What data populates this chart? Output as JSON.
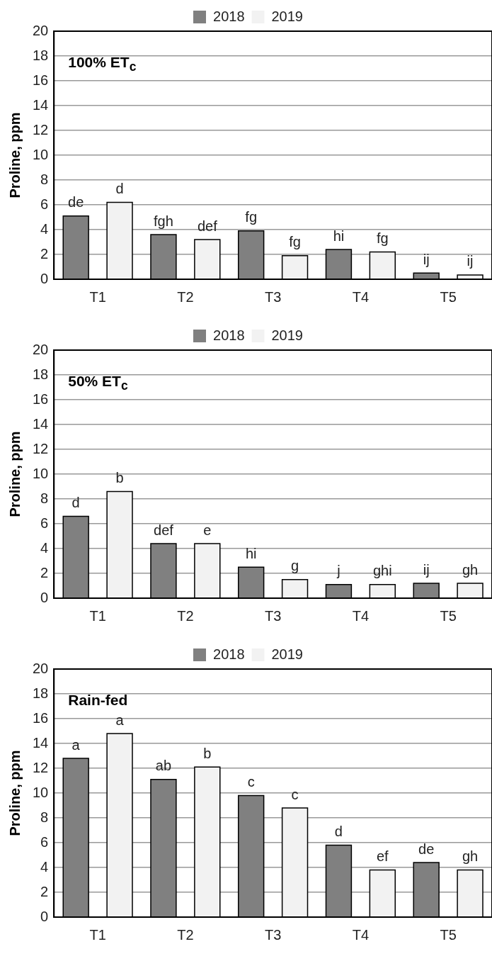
{
  "chart_data": [
    {
      "type": "bar",
      "title": "100% ET$_{c}$",
      "ylabel": "Proline, ppm",
      "categories": [
        "T1",
        "T2",
        "T3",
        "T4",
        "T5"
      ],
      "series": [
        {
          "name": "2018",
          "color": "#808080",
          "values": [
            5.1,
            3.6,
            3.9,
            2.4,
            0.5
          ],
          "value_labels": [
            "de",
            "fgh",
            "fg",
            "hi",
            "ij"
          ]
        },
        {
          "name": "2019",
          "color": "#f2f2f2",
          "values": [
            6.2,
            3.2,
            1.9,
            2.2,
            0.35
          ],
          "value_labels": [
            "d",
            "def",
            "fg",
            "fg",
            "ij"
          ]
        }
      ],
      "ylim": [
        0,
        20
      ],
      "yticks": [
        0,
        2,
        4,
        6,
        8,
        10,
        12,
        14,
        16,
        18,
        20
      ],
      "grid": "y",
      "legend": "top"
    },
    {
      "type": "bar",
      "title": "50% ET$_{c}$",
      "ylabel": "Proline, ppm",
      "categories": [
        "T1",
        "T2",
        "T3",
        "T4",
        "T5"
      ],
      "series": [
        {
          "name": "2018",
          "color": "#808080",
          "values": [
            6.6,
            4.4,
            2.5,
            1.1,
            1.2
          ],
          "value_labels": [
            "d",
            "def",
            "hi",
            "j",
            "ij"
          ]
        },
        {
          "name": "2019",
          "color": "#f2f2f2",
          "values": [
            8.6,
            4.4,
            1.5,
            1.1,
            1.2
          ],
          "value_labels": [
            "b",
            "e",
            "g",
            "ghi",
            "gh"
          ]
        }
      ],
      "ylim": [
        0,
        20
      ],
      "yticks": [
        0,
        2,
        4,
        6,
        8,
        10,
        12,
        14,
        16,
        18,
        20
      ],
      "grid": "y",
      "legend": "top"
    },
    {
      "type": "bar",
      "title": "Rain-fed",
      "ylabel": "Proline, ppm",
      "categories": [
        "T1",
        "T2",
        "T3",
        "T4",
        "T5"
      ],
      "series": [
        {
          "name": "2018",
          "color": "#808080",
          "values": [
            12.8,
            11.1,
            9.8,
            5.8,
            4.4
          ],
          "value_labels": [
            "a",
            "ab",
            "c",
            "d",
            "de"
          ]
        },
        {
          "name": "2019",
          "color": "#f2f2f2",
          "values": [
            14.8,
            12.1,
            8.8,
            3.8,
            3.8
          ],
          "value_labels": [
            "a",
            "b",
            "c",
            "ef",
            "gh"
          ]
        }
      ],
      "ylim": [
        0,
        20
      ],
      "yticks": [
        0,
        2,
        4,
        6,
        8,
        10,
        12,
        14,
        16,
        18,
        20
      ],
      "grid": "y",
      "legend": "top"
    }
  ]
}
